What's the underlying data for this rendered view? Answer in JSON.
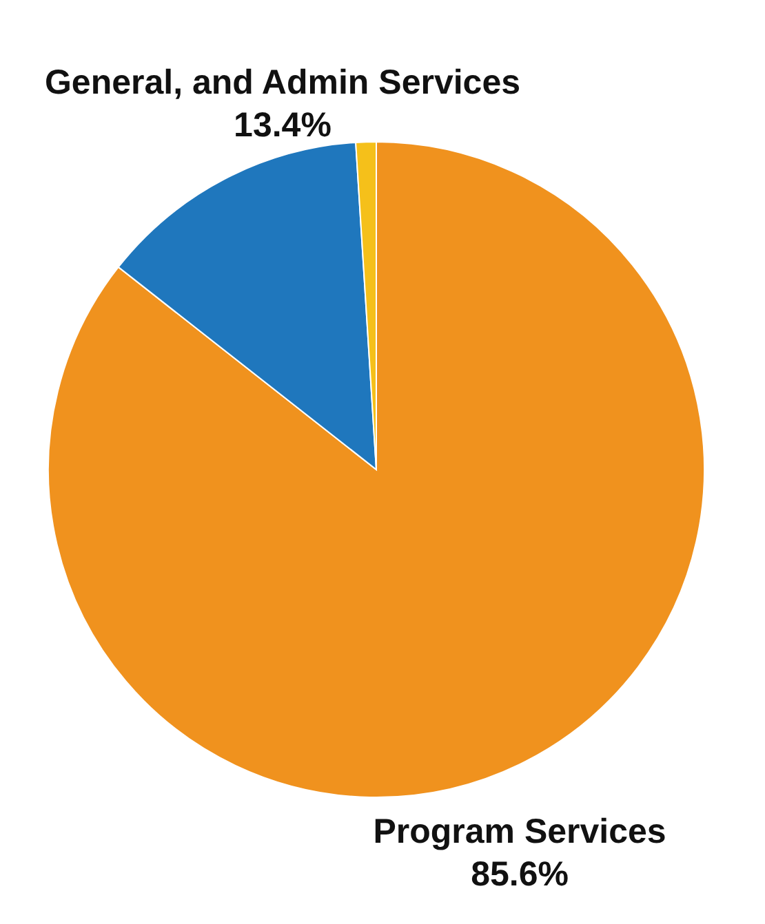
{
  "chart_data": {
    "type": "pie",
    "categories": [
      "Program Services",
      "General, and Admin Services",
      null
    ],
    "values": [
      85.6,
      13.4,
      1.0
    ],
    "colors": [
      "#f0921e",
      "#1f77bd",
      "#f5c01a"
    ],
    "value_labels": [
      "85.6%",
      "13.4%",
      null
    ]
  }
}
